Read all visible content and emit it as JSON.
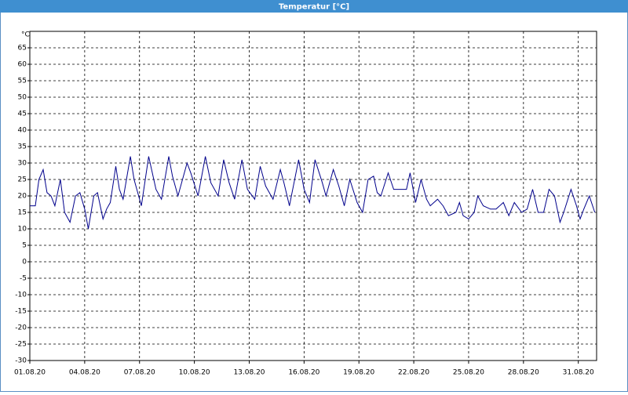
{
  "chart_data": {
    "type": "line",
    "title": "Temperatur [°C]",
    "y_unit": "°C",
    "x": [
      1.0,
      1.3,
      1.5,
      1.73,
      1.94,
      2.16,
      2.37,
      2.67,
      2.9,
      3.2,
      3.5,
      3.74,
      4.0,
      4.2,
      4.5,
      4.7,
      5.0,
      5.2,
      5.4,
      5.7,
      5.9,
      6.1,
      6.5,
      6.7,
      7.1,
      7.5,
      7.9,
      8.2,
      8.6,
      8.8,
      9.1,
      9.6,
      9.8,
      10.2,
      10.6,
      10.9,
      11.3,
      11.6,
      11.9,
      12.2,
      12.6,
      12.9,
      13.3,
      13.6,
      13.9,
      14.3,
      14.7,
      14.9,
      15.2,
      15.7,
      16.0,
      16.3,
      16.6,
      17.0,
      17.2,
      17.6,
      17.9,
      18.2,
      18.5,
      18.9,
      19.2,
      19.5,
      19.8,
      20.0,
      20.2,
      20.6,
      20.9,
      21.2,
      21.6,
      21.8,
      22.1,
      22.4,
      22.7,
      22.9,
      23.3,
      23.6,
      23.9,
      24.3,
      24.5,
      24.7,
      25.0,
      25.3,
      25.5,
      25.8,
      26.2,
      26.5,
      26.9,
      27.2,
      27.5,
      27.9,
      28.2,
      28.5,
      28.8,
      29.1,
      29.4,
      29.7,
      30.0,
      30.2,
      30.6,
      30.9,
      31.1,
      31.3,
      31.6,
      31.9
    ],
    "values": [
      17,
      17,
      25,
      28,
      21,
      20,
      17,
      25,
      15,
      12,
      20,
      21,
      16,
      10,
      20,
      21,
      13,
      16,
      18,
      29,
      22,
      19,
      32,
      25,
      17,
      32,
      22,
      19,
      32,
      26,
      20,
      30,
      27,
      20,
      32,
      24,
      20,
      31,
      24,
      19,
      31,
      22,
      19,
      29,
      23,
      19,
      28,
      24,
      17,
      31,
      22,
      18,
      31,
      24,
      20,
      28,
      23,
      17,
      25,
      18,
      15,
      25,
      26,
      21,
      20,
      27,
      22,
      22,
      22,
      27,
      18,
      25,
      19,
      17,
      19,
      17,
      14,
      15,
      18,
      14,
      13,
      15,
      20,
      17,
      16,
      16,
      18,
      14,
      18,
      15,
      16,
      22,
      15,
      15,
      22,
      20,
      12,
      15,
      22,
      17,
      13,
      16,
      20,
      15
    ],
    "color": "#00008b",
    "xlim": [
      1,
      32
    ],
    "xticks": [
      {
        "value": 1,
        "label": "01.08.20"
      },
      {
        "value": 4,
        "label": "04.08.20"
      },
      {
        "value": 7,
        "label": "07.08.20"
      },
      {
        "value": 10,
        "label": "10.08.20"
      },
      {
        "value": 13,
        "label": "13.08.20"
      },
      {
        "value": 16,
        "label": "16.08.20"
      },
      {
        "value": 19,
        "label": "19.08.20"
      },
      {
        "value": 22,
        "label": "22.08.20"
      },
      {
        "value": 25,
        "label": "25.08.20"
      },
      {
        "value": 28,
        "label": "28.08.20"
      },
      {
        "value": 31,
        "label": "31.08.20"
      }
    ],
    "ylim": [
      -30,
      70
    ],
    "yticks": [
      -30,
      -25,
      -20,
      -15,
      -10,
      -5,
      0,
      5,
      10,
      15,
      20,
      25,
      30,
      35,
      40,
      45,
      50,
      55,
      60,
      65
    ],
    "grid": true
  }
}
